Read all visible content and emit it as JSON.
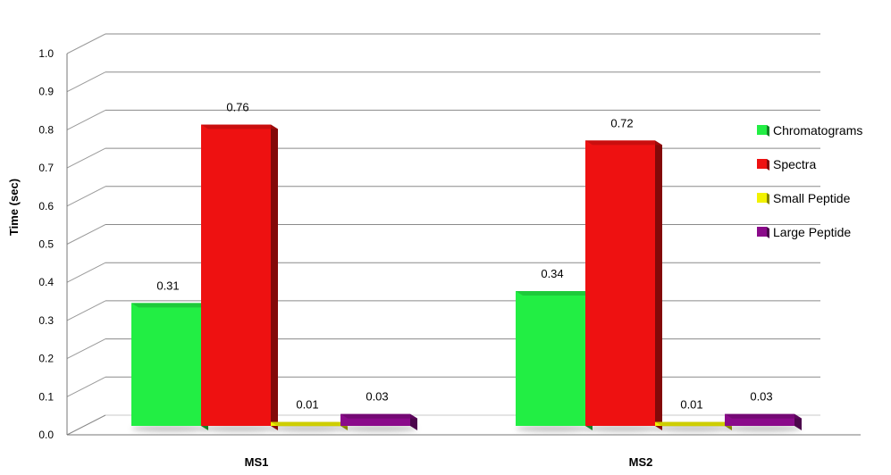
{
  "chart_data": {
    "type": "bar",
    "title": "",
    "xlabel": "",
    "ylabel": "Time   (sec)",
    "ylim": [
      0,
      1.0
    ],
    "y_ticks": [
      "0.0",
      "0.1",
      "0.2",
      "0.3",
      "0.4",
      "0.5",
      "0.6",
      "0.7",
      "0.8",
      "0.9",
      "1.0"
    ],
    "categories": [
      "MS1",
      "MS2"
    ],
    "series": [
      {
        "name": "Chromatograms",
        "values": [
          0.31,
          0.34
        ],
        "labels": [
          "0.31",
          "0.34"
        ],
        "color": "#22ee44"
      },
      {
        "name": "Spectra",
        "values": [
          0.76,
          0.72
        ],
        "labels": [
          "0.76",
          "0.72"
        ],
        "color": "#ee1111"
      },
      {
        "name": "Small Peptide",
        "values": [
          0.01,
          0.01
        ],
        "labels": [
          "0.01",
          "0.01"
        ],
        "color": "#f2f200"
      },
      {
        "name": "Large Peptide",
        "values": [
          0.03,
          0.03
        ],
        "labels": [
          "0.03",
          "0.03"
        ],
        "color": "#8a0a8a"
      }
    ],
    "grid": true,
    "style": "3d",
    "legend_position": "right"
  }
}
